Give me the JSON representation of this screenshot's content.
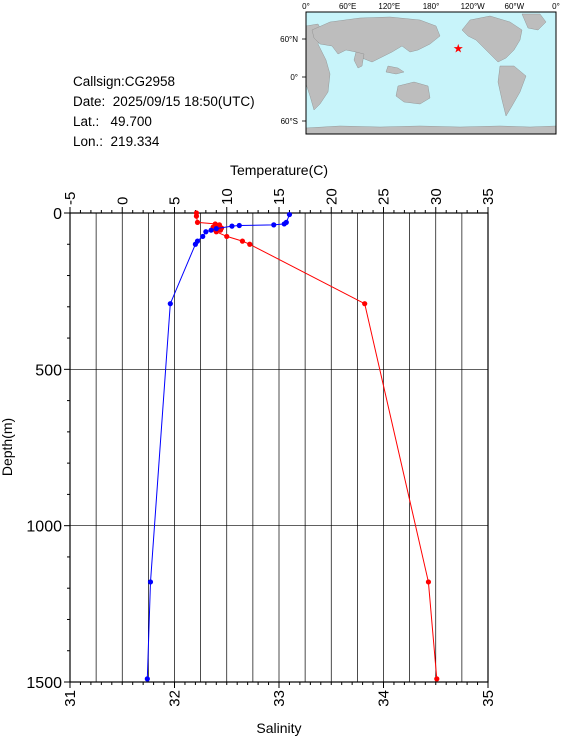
{
  "station": {
    "callsign_label": "Callsign:",
    "callsign": "CG2958",
    "date_label": "Date:",
    "date": "2025/09/15 18:50(UTC)",
    "lat_label": "Lat.:",
    "lat": "49.700",
    "lon_label": "Lon.:",
    "lon": "219.334"
  },
  "map": {
    "lon_labels": [
      "0°",
      "60°E",
      "120°E",
      "180°",
      "120°W",
      "60°W",
      "0°"
    ],
    "lat_labels": [
      "60°N",
      "0°",
      "60°S"
    ],
    "ocean_color": "#c8f4fa",
    "land_color": "#bdbdbd",
    "marker_color": "#ff0000",
    "marker_lon": 219.334,
    "marker_lat": 49.7
  },
  "chart_data": {
    "type": "line",
    "top_axis_label": "Temperature(C)",
    "bottom_axis_label": "Salinity",
    "ylabel": "Depth(m)",
    "temperature_ticks": [
      "-5",
      "0",
      "5",
      "10",
      "15",
      "20",
      "25",
      "30",
      "35"
    ],
    "salinity_ticks": [
      "31",
      "32",
      "33",
      "34",
      "35"
    ],
    "depth_ticks": [
      "0",
      "500",
      "1000",
      "1500"
    ],
    "temperature_lim": [
      -5,
      35
    ],
    "salinity_lim": [
      31,
      35
    ],
    "depth_lim": [
      0,
      1500
    ],
    "grid": true,
    "series": [
      {
        "color": "#ff0000",
        "axis": "temperature",
        "points": [
          {
            "x": 7.1,
            "y": 0
          },
          {
            "x": 7.1,
            "y": 10
          },
          {
            "x": 7.2,
            "y": 30
          },
          {
            "x": 8.9,
            "y": 35
          },
          {
            "x": 9.3,
            "y": 38
          },
          {
            "x": 9.0,
            "y": 42
          },
          {
            "x": 8.7,
            "y": 45
          },
          {
            "x": 9.5,
            "y": 48
          },
          {
            "x": 8.8,
            "y": 52
          },
          {
            "x": 9.4,
            "y": 55
          },
          {
            "x": 9.0,
            "y": 60
          },
          {
            "x": 10.0,
            "y": 75
          },
          {
            "x": 11.5,
            "y": 90
          },
          {
            "x": 12.2,
            "y": 100
          },
          {
            "x": 23.2,
            "y": 290
          },
          {
            "x": 29.3,
            "y": 1180
          },
          {
            "x": 30.1,
            "y": 1490
          }
        ]
      },
      {
        "color": "#0000ff",
        "axis": "salinity",
        "points": [
          {
            "x": 33.1,
            "y": 5
          },
          {
            "x": 33.07,
            "y": 30
          },
          {
            "x": 33.05,
            "y": 35
          },
          {
            "x": 32.95,
            "y": 38
          },
          {
            "x": 32.62,
            "y": 40
          },
          {
            "x": 32.55,
            "y": 42
          },
          {
            "x": 32.4,
            "y": 50
          },
          {
            "x": 32.35,
            "y": 55
          },
          {
            "x": 32.3,
            "y": 60
          },
          {
            "x": 32.27,
            "y": 75
          },
          {
            "x": 32.22,
            "y": 90
          },
          {
            "x": 32.2,
            "y": 100
          },
          {
            "x": 31.96,
            "y": 290
          },
          {
            "x": 31.77,
            "y": 1180
          },
          {
            "x": 31.74,
            "y": 1490
          }
        ]
      }
    ]
  }
}
